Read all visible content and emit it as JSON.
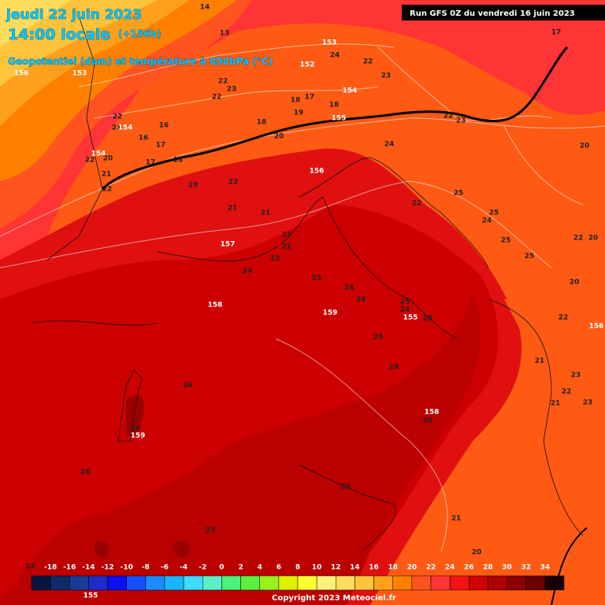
{
  "header": {
    "date": "jeudi 22 juin 2023",
    "time": "14:00 locale",
    "lead": "(+156h)",
    "subtitle": "Geopotentiel (dam) et température à 850hPa (°C)",
    "run": "Run GFS 0Z du vendredi 16 juin 2023"
  },
  "legend": {
    "values": [
      -18,
      -16,
      -14,
      -12,
      -10,
      -8,
      -6,
      -4,
      -2,
      0,
      2,
      4,
      6,
      8,
      10,
      12,
      14,
      16,
      18,
      20,
      22,
      24,
      26,
      28,
      30,
      32,
      34
    ],
    "colors": [
      "#0a1640",
      "#102a6a",
      "#183c96",
      "#1c2cc8",
      "#0c10f0",
      "#1450ff",
      "#1a8cff",
      "#1cb4ff",
      "#3cdcff",
      "#5cf0c8",
      "#4cf07c",
      "#5cf03c",
      "#98f01c",
      "#dcf000",
      "#ffff30",
      "#fff07c",
      "#ffdc5c",
      "#ffc43c",
      "#ffa01c",
      "#ff8000",
      "#ff5420",
      "#ff3434",
      "#f01414",
      "#d00000",
      "#b00000",
      "#8c0000",
      "#6c0000",
      "#1a0000"
    ]
  },
  "map_labels": [
    "14",
    "156",
    "153",
    "13",
    "153",
    "24",
    "22",
    "152",
    "22",
    "23",
    "22",
    "154",
    "23",
    "18",
    "17",
    "18",
    "19",
    "155",
    "22",
    "21",
    "154",
    "16",
    "16",
    "17",
    "18",
    "20",
    "24",
    "22",
    "23",
    "154",
    "22",
    "20",
    "17",
    "18",
    "21",
    "22",
    "19",
    "22",
    "156",
    "20",
    "17",
    "25",
    "22",
    "25",
    "24",
    "21",
    "21",
    "21",
    "22",
    "157",
    "25",
    "22",
    "20",
    "23",
    "25",
    "24",
    "23",
    "20",
    "24",
    "24",
    "158",
    "25",
    "24",
    "155",
    "25",
    "159",
    "22",
    "156",
    "25",
    "21",
    "24",
    "23",
    "26",
    "22",
    "21",
    "23",
    "158",
    "25",
    "26",
    "159",
    "26",
    "25",
    "21",
    "25",
    "20",
    "23",
    "155"
  ],
  "copyright": "Copyright 2023 Meteociel.fr"
}
